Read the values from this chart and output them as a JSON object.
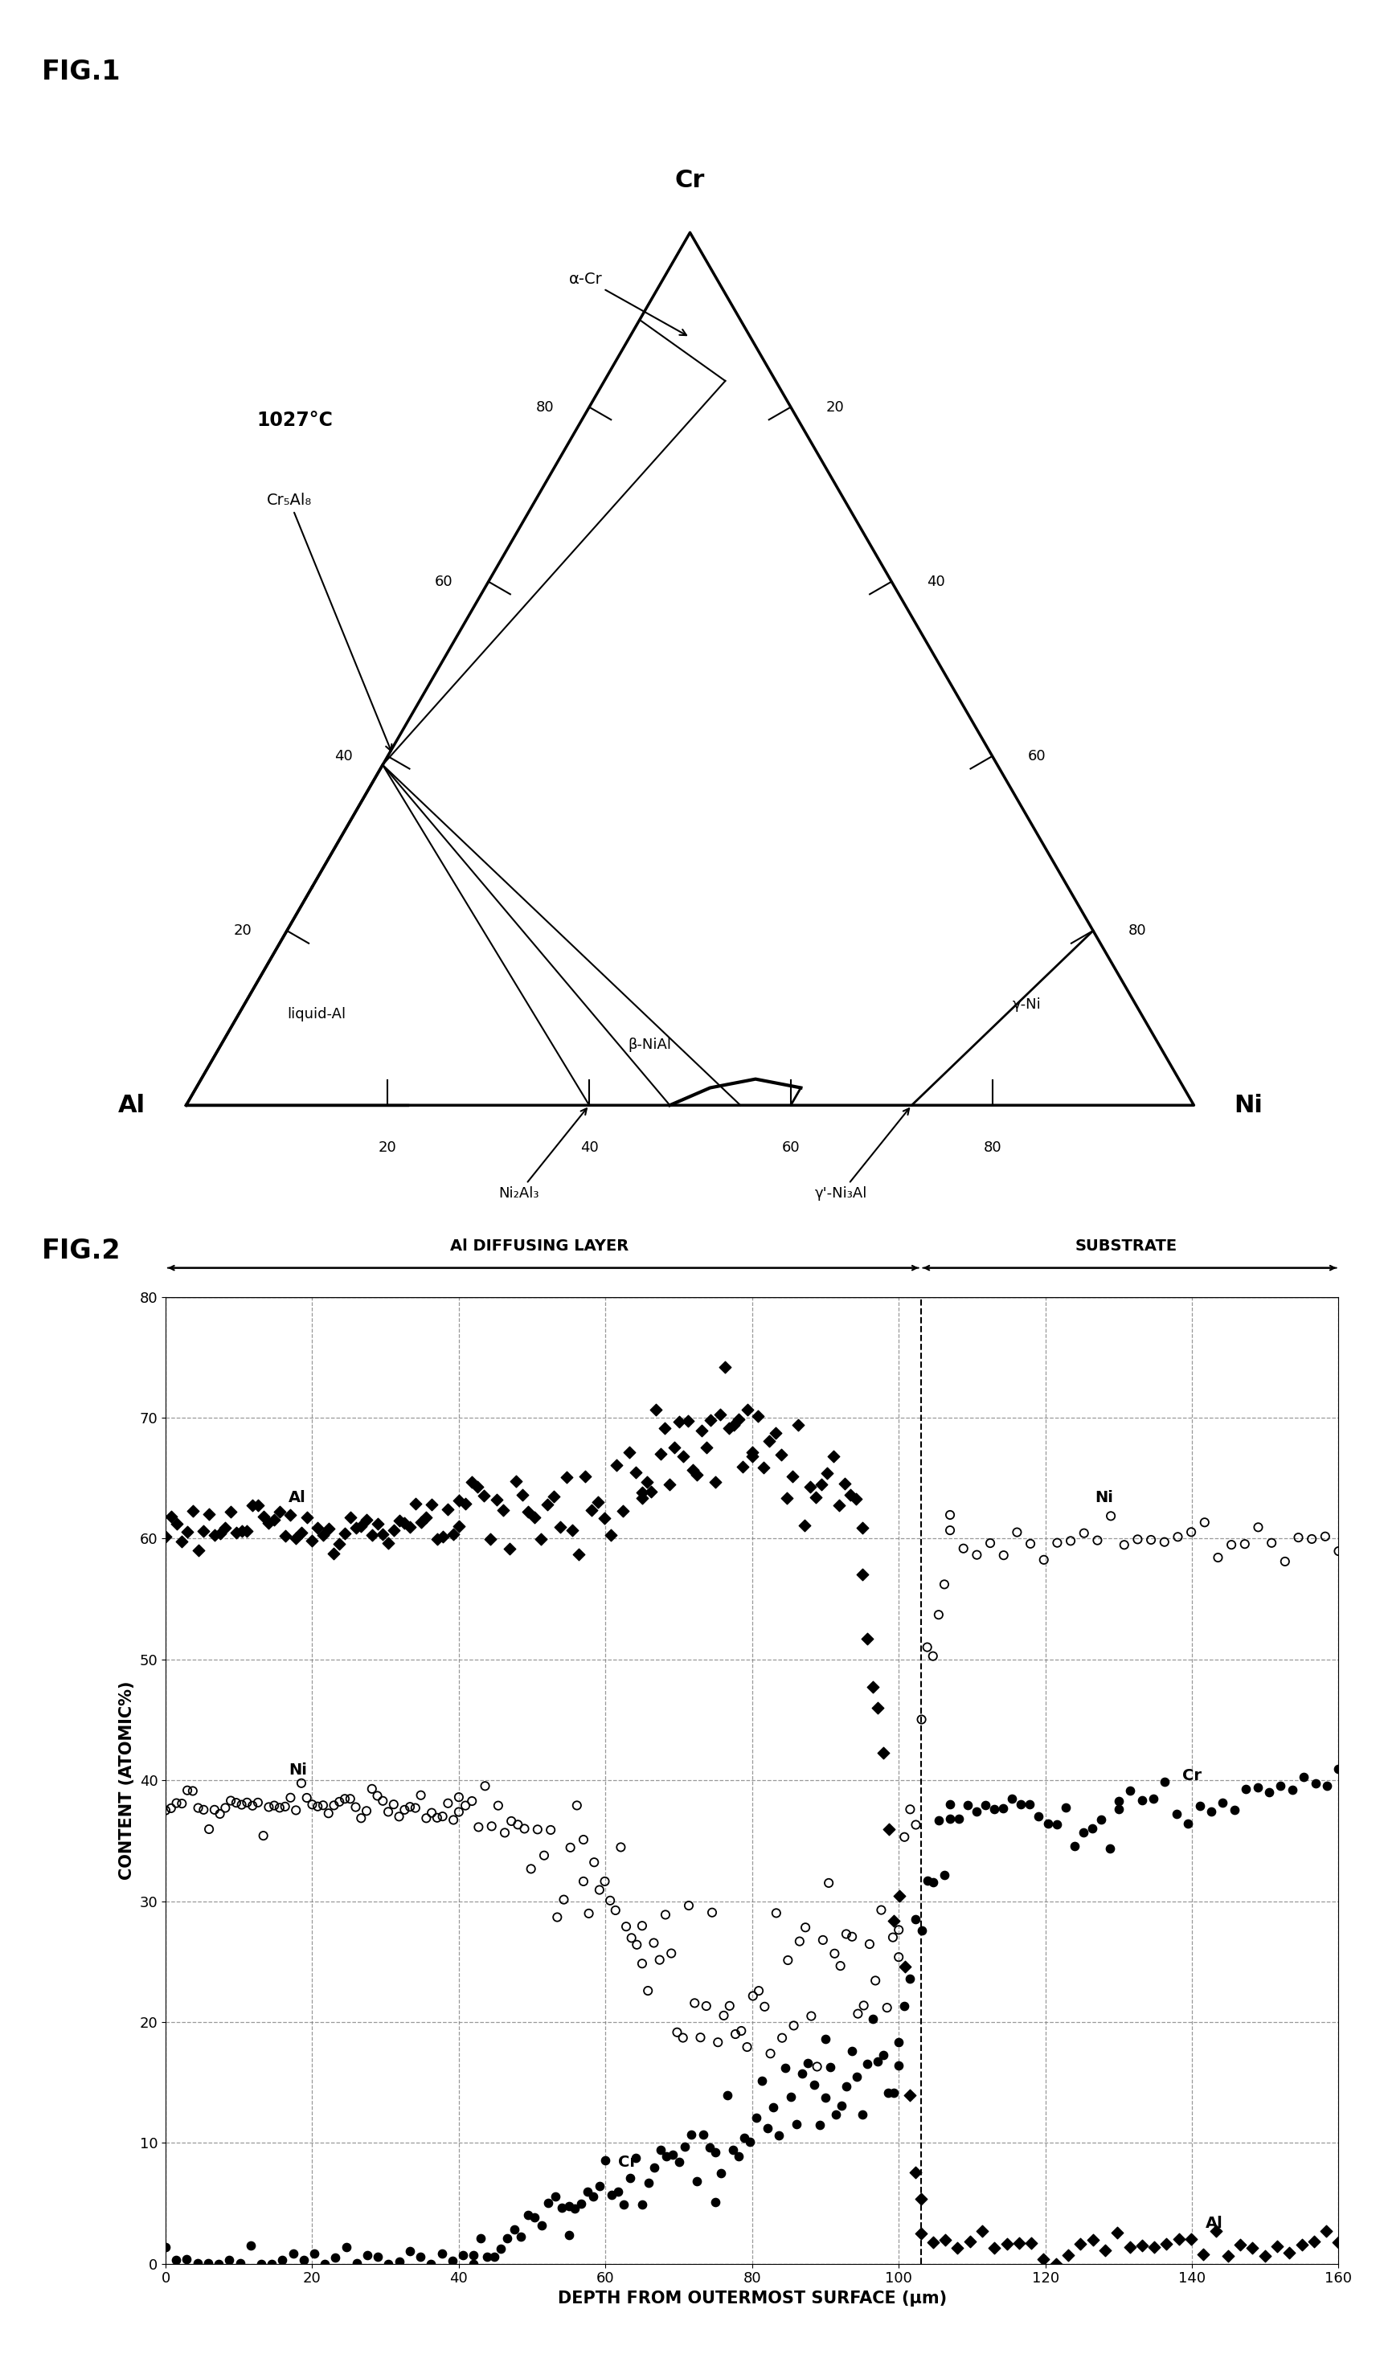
{
  "fig1_title": "FIG.1",
  "fig2_title": "FIG.2",
  "temp_label": "1027°C",
  "corner_labels": {
    "Al": "Al",
    "Ni": "Ni",
    "Cr": "Cr"
  },
  "phase_labels": {
    "alpha_cr": "α-Cr",
    "cr5al8": "Cr₅Al₈",
    "liquid_al": "liquid-Al",
    "beta_nial": "β-NiAl",
    "ni2al3": "Ni₂Al₃",
    "gamma_prime": "γ'-Ni₃Al",
    "gamma_ni": "γ-Ni"
  },
  "fig2_xlabel": "DEPTH FROM OUTERMOST SURFACE (μm)",
  "fig2_ylabel": "CONTENT (ATOMIC%)",
  "fig2_region1": "Al DIFFUSING LAYER",
  "fig2_region2": "SUBSTRATE",
  "background_color": "#ffffff"
}
